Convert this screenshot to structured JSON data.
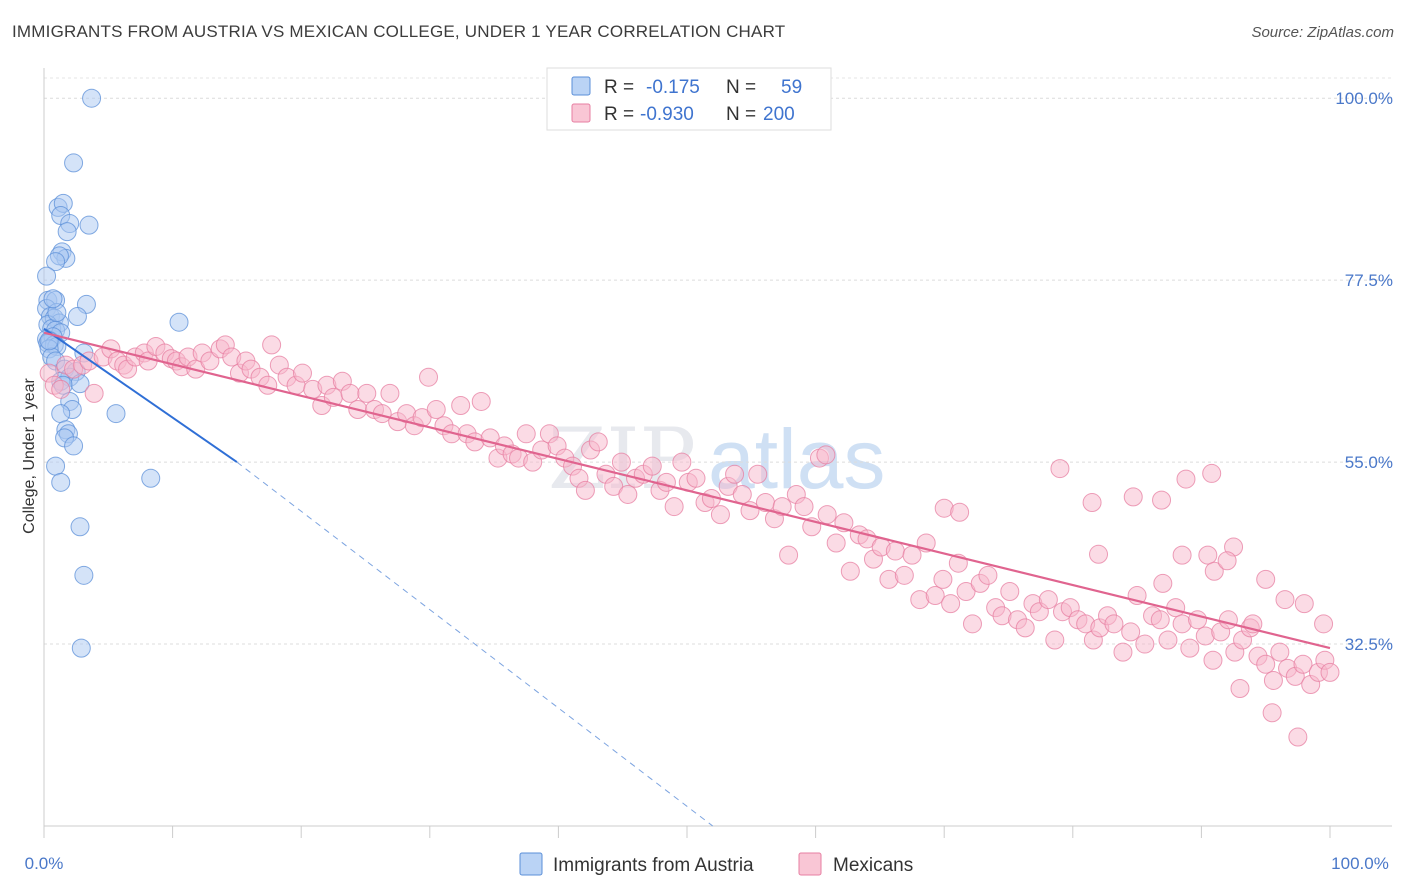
{
  "title": "IMMIGRANTS FROM AUSTRIA VS MEXICAN COLLEGE, UNDER 1 YEAR CORRELATION CHART",
  "source": "Source: ZipAtlas.com",
  "watermark": {
    "zip": "ZIP",
    "atlas": "atlas"
  },
  "legend": {
    "rows": [
      {
        "r_label": "R =",
        "r_value": "-0.175",
        "n_label": "N =",
        "n_value": "59",
        "color": "#a9c8f2"
      },
      {
        "r_label": "R =",
        "r_value": "-0.930",
        "n_label": "N =",
        "n_value": "200",
        "color": "#f7b8cb"
      }
    ]
  },
  "bottom_legend": [
    {
      "label": "Immigrants from Austria",
      "color": "#a9c8f2"
    },
    {
      "label": "Mexicans",
      "color": "#f7b8cb"
    }
  ],
  "chart_data": {
    "type": "scatter",
    "title": "IMMIGRANTS FROM AUSTRIA VS MEXICAN COLLEGE, UNDER 1 YEAR CORRELATION CHART",
    "xlabel": "",
    "ylabel": "College, Under 1 year",
    "xlim": [
      0,
      100
    ],
    "ylim": [
      10,
      102.5
    ],
    "x_tick_labels": [
      "0.0%",
      "100.0%"
    ],
    "y_ticks": [
      32.5,
      55.0,
      77.5,
      100.0
    ],
    "y_tick_labels": [
      "32.5%",
      "55.0%",
      "77.5%",
      "100.0%"
    ],
    "grid": true,
    "series": [
      {
        "name": "Immigrants from Austria",
        "color": "#a9c8f2",
        "stroke": "#5b8fd8",
        "trend": {
          "x0": 0,
          "y0": 71.5,
          "x1": 15,
          "y1": 55.0,
          "dash_to_x": 52,
          "dash_to_y": 10
        },
        "points": [
          [
            3.7,
            100.0
          ],
          [
            2.3,
            92.0
          ],
          [
            1.1,
            86.5
          ],
          [
            1.5,
            87.0
          ],
          [
            1.3,
            85.5
          ],
          [
            2.0,
            84.5
          ],
          [
            3.5,
            84.3
          ],
          [
            1.8,
            83.5
          ],
          [
            1.4,
            81.0
          ],
          [
            1.7,
            80.2
          ],
          [
            1.2,
            80.5
          ],
          [
            0.9,
            79.8
          ],
          [
            0.2,
            78.0
          ],
          [
            0.3,
            75.0
          ],
          [
            0.9,
            75.0
          ],
          [
            3.3,
            74.5
          ],
          [
            0.2,
            74.0
          ],
          [
            0.5,
            73.0
          ],
          [
            0.8,
            72.8
          ],
          [
            2.6,
            73.0
          ],
          [
            1.2,
            72.2
          ],
          [
            0.3,
            72.0
          ],
          [
            0.6,
            71.5
          ],
          [
            0.9,
            71.3
          ],
          [
            1.3,
            71.0
          ],
          [
            0.2,
            70.2
          ],
          [
            0.5,
            70.0
          ],
          [
            0.7,
            70.5
          ],
          [
            0.3,
            69.7
          ],
          [
            0.8,
            69.5
          ],
          [
            1.0,
            69.3
          ],
          [
            0.4,
            69.0
          ],
          [
            3.1,
            68.5
          ],
          [
            0.6,
            68.0
          ],
          [
            0.9,
            67.5
          ],
          [
            10.5,
            72.3
          ],
          [
            1.6,
            66.5
          ],
          [
            2.5,
            66.2
          ],
          [
            2.0,
            65.5
          ],
          [
            1.3,
            65.0
          ],
          [
            1.5,
            64.5
          ],
          [
            2.8,
            64.7
          ],
          [
            2.0,
            62.5
          ],
          [
            2.2,
            61.5
          ],
          [
            1.3,
            61.0
          ],
          [
            5.6,
            61.0
          ],
          [
            1.7,
            59.0
          ],
          [
            1.9,
            58.5
          ],
          [
            1.6,
            58.0
          ],
          [
            2.3,
            57.0
          ],
          [
            0.9,
            54.5
          ],
          [
            8.3,
            53.0
          ],
          [
            1.3,
            52.5
          ],
          [
            2.8,
            47.0
          ],
          [
            3.1,
            41.0
          ],
          [
            2.9,
            32.0
          ],
          [
            0.4,
            70.0
          ],
          [
            1.0,
            73.5
          ],
          [
            0.7,
            75.2
          ]
        ]
      },
      {
        "name": "Mexicans",
        "color": "#f7b8cb",
        "stroke": "#e77fa2",
        "trend": {
          "x0": 0,
          "y0": 71.0,
          "x1": 100,
          "y1": 32.0
        },
        "points": [
          [
            0.4,
            66.0
          ],
          [
            0.8,
            64.5
          ],
          [
            1.3,
            64.0
          ],
          [
            1.7,
            67.0
          ],
          [
            2.3,
            66.5
          ],
          [
            3.0,
            67.0
          ],
          [
            3.5,
            67.5
          ],
          [
            3.9,
            63.5
          ],
          [
            4.6,
            68.0
          ],
          [
            5.2,
            69.0
          ],
          [
            5.7,
            67.5
          ],
          [
            6.2,
            67.0
          ],
          [
            6.5,
            66.5
          ],
          [
            7.1,
            68.0
          ],
          [
            7.8,
            68.5
          ],
          [
            8.1,
            67.5
          ],
          [
            8.7,
            69.3
          ],
          [
            9.4,
            68.5
          ],
          [
            9.9,
            67.8
          ],
          [
            10.3,
            67.5
          ],
          [
            10.7,
            66.8
          ],
          [
            11.2,
            68.0
          ],
          [
            11.8,
            66.5
          ],
          [
            12.3,
            68.5
          ],
          [
            12.9,
            67.5
          ],
          [
            13.7,
            69.0
          ],
          [
            14.1,
            69.5
          ],
          [
            14.6,
            68.0
          ],
          [
            15.2,
            66.0
          ],
          [
            15.7,
            67.5
          ],
          [
            16.1,
            66.5
          ],
          [
            16.8,
            65.5
          ],
          [
            17.4,
            64.5
          ],
          [
            17.7,
            69.5
          ],
          [
            18.3,
            67.0
          ],
          [
            18.9,
            65.5
          ],
          [
            19.6,
            64.5
          ],
          [
            20.1,
            66.0
          ],
          [
            20.9,
            64.0
          ],
          [
            21.6,
            62.0
          ],
          [
            22.0,
            64.5
          ],
          [
            22.5,
            63.0
          ],
          [
            23.2,
            65.0
          ],
          [
            23.8,
            63.5
          ],
          [
            24.4,
            61.5
          ],
          [
            25.1,
            63.5
          ],
          [
            25.7,
            61.5
          ],
          [
            26.3,
            61.0
          ],
          [
            26.9,
            63.5
          ],
          [
            27.5,
            60.0
          ],
          [
            28.2,
            61.0
          ],
          [
            28.8,
            59.5
          ],
          [
            29.4,
            60.5
          ],
          [
            29.9,
            65.5
          ],
          [
            30.5,
            61.5
          ],
          [
            31.1,
            59.5
          ],
          [
            31.7,
            58.5
          ],
          [
            32.4,
            62.0
          ],
          [
            32.9,
            58.5
          ],
          [
            33.5,
            57.5
          ],
          [
            34.0,
            62.5
          ],
          [
            34.7,
            58.0
          ],
          [
            35.3,
            55.5
          ],
          [
            35.8,
            57.0
          ],
          [
            36.4,
            56.0
          ],
          [
            36.9,
            55.5
          ],
          [
            37.5,
            58.5
          ],
          [
            38.0,
            55.0
          ],
          [
            38.7,
            56.5
          ],
          [
            39.3,
            58.5
          ],
          [
            39.9,
            57.0
          ],
          [
            40.5,
            55.5
          ],
          [
            41.1,
            54.5
          ],
          [
            41.6,
            53.0
          ],
          [
            42.1,
            51.5
          ],
          [
            42.5,
            56.5
          ],
          [
            43.1,
            57.5
          ],
          [
            43.7,
            53.5
          ],
          [
            44.3,
            52.0
          ],
          [
            44.9,
            55.0
          ],
          [
            45.4,
            51.0
          ],
          [
            46.0,
            53.0
          ],
          [
            46.6,
            53.5
          ],
          [
            47.3,
            54.5
          ],
          [
            47.9,
            51.5
          ],
          [
            48.4,
            52.5
          ],
          [
            49.0,
            49.5
          ],
          [
            49.6,
            55.0
          ],
          [
            50.1,
            52.5
          ],
          [
            50.7,
            53.0
          ],
          [
            51.4,
            50.0
          ],
          [
            51.9,
            50.5
          ],
          [
            52.6,
            48.5
          ],
          [
            53.2,
            52.0
          ],
          [
            53.7,
            53.5
          ],
          [
            54.3,
            51.0
          ],
          [
            54.9,
            49.0
          ],
          [
            55.5,
            53.5
          ],
          [
            56.1,
            50.0
          ],
          [
            56.8,
            48.0
          ],
          [
            57.4,
            49.5
          ],
          [
            57.9,
            43.5
          ],
          [
            58.5,
            51.0
          ],
          [
            59.1,
            49.5
          ],
          [
            59.7,
            47.0
          ],
          [
            60.3,
            55.5
          ],
          [
            60.9,
            48.5
          ],
          [
            61.6,
            45.0
          ],
          [
            62.2,
            47.5
          ],
          [
            62.7,
            41.5
          ],
          [
            63.4,
            46.0
          ],
          [
            64.0,
            45.5
          ],
          [
            64.5,
            43.0
          ],
          [
            65.1,
            44.5
          ],
          [
            65.7,
            40.5
          ],
          [
            66.2,
            44.0
          ],
          [
            66.9,
            41.0
          ],
          [
            67.5,
            43.5
          ],
          [
            68.1,
            38.0
          ],
          [
            68.6,
            45.0
          ],
          [
            69.3,
            38.5
          ],
          [
            69.9,
            40.5
          ],
          [
            70.5,
            37.5
          ],
          [
            71.1,
            42.5
          ],
          [
            71.7,
            39.0
          ],
          [
            72.2,
            35.0
          ],
          [
            72.8,
            40.0
          ],
          [
            73.4,
            41.0
          ],
          [
            74.0,
            37.0
          ],
          [
            74.5,
            36.0
          ],
          [
            75.1,
            39.0
          ],
          [
            75.7,
            35.5
          ],
          [
            76.3,
            34.5
          ],
          [
            76.9,
            37.5
          ],
          [
            77.4,
            36.5
          ],
          [
            78.1,
            38.0
          ],
          [
            78.6,
            33.0
          ],
          [
            79.2,
            36.5
          ],
          [
            79.8,
            37.0
          ],
          [
            80.4,
            35.5
          ],
          [
            81.0,
            35.0
          ],
          [
            81.6,
            33.0
          ],
          [
            82.1,
            34.5
          ],
          [
            82.7,
            36.0
          ],
          [
            83.2,
            35.0
          ],
          [
            83.9,
            31.5
          ],
          [
            84.5,
            34.0
          ],
          [
            85.0,
            38.5
          ],
          [
            85.6,
            32.5
          ],
          [
            86.2,
            36.0
          ],
          [
            86.8,
            35.5
          ],
          [
            87.4,
            33.0
          ],
          [
            88.0,
            37.0
          ],
          [
            88.5,
            35.0
          ],
          [
            89.1,
            32.0
          ],
          [
            89.7,
            35.5
          ],
          [
            90.3,
            33.5
          ],
          [
            90.9,
            30.5
          ],
          [
            91.5,
            34.0
          ],
          [
            92.1,
            35.5
          ],
          [
            92.6,
            31.5
          ],
          [
            93.2,
            33.0
          ],
          [
            93.8,
            34.5
          ],
          [
            94.4,
            31.0
          ],
          [
            95.0,
            30.0
          ],
          [
            95.6,
            28.0
          ],
          [
            96.1,
            31.5
          ],
          [
            96.7,
            29.5
          ],
          [
            97.3,
            28.5
          ],
          [
            97.9,
            30.0
          ],
          [
            98.5,
            27.5
          ],
          [
            99.1,
            29.0
          ],
          [
            99.6,
            30.5
          ],
          [
            100.0,
            29.0
          ],
          [
            60.8,
            55.9
          ],
          [
            79.0,
            54.2
          ],
          [
            81.5,
            50.0
          ],
          [
            84.7,
            50.7
          ],
          [
            86.9,
            50.3
          ],
          [
            88.8,
            52.9
          ],
          [
            90.8,
            53.6
          ],
          [
            70.0,
            49.3
          ],
          [
            71.2,
            48.8
          ],
          [
            82.0,
            43.6
          ],
          [
            87.0,
            40.0
          ],
          [
            88.5,
            43.5
          ],
          [
            92.5,
            44.5
          ],
          [
            90.5,
            43.5
          ],
          [
            95.0,
            40.5
          ],
          [
            91.0,
            41.5
          ],
          [
            96.5,
            38.0
          ],
          [
            98.0,
            37.5
          ],
          [
            93.0,
            27.0
          ],
          [
            99.5,
            35.0
          ],
          [
            95.5,
            24.0
          ],
          [
            97.5,
            21.0
          ],
          [
            94.0,
            35.0
          ],
          [
            92.0,
            42.8
          ]
        ]
      }
    ]
  }
}
